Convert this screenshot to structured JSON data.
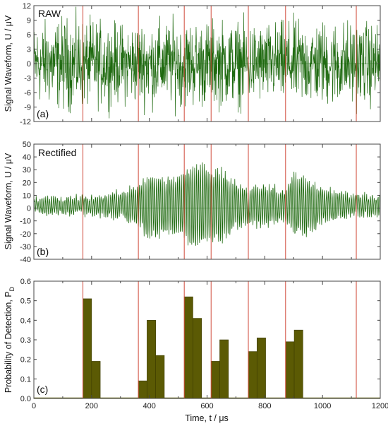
{
  "colors": {
    "waveform": "#1f6a10",
    "bars": "#5b5a04",
    "bar_edge": "#3d3c00",
    "markers": "#d04a3a",
    "frame": "#444444"
  },
  "chart_data": [
    {
      "type": "line",
      "panel_tag": "(a)",
      "annotation": "RAW",
      "ylabel": "Signal Waveform, U / μV",
      "xlim": [
        0,
        1200
      ],
      "ylim": [
        -12,
        12
      ],
      "yticks": [
        12,
        9,
        6,
        3,
        0,
        -3,
        -6,
        -9,
        -12
      ],
      "x_tick_labels_shown": false,
      "envelope": {
        "x": [
          0,
          100,
          200,
          300,
          400,
          500,
          600,
          700,
          800,
          900,
          1000,
          1100,
          1200
        ],
        "amplitude": [
          5.5,
          6.5,
          6,
          5.5,
          6,
          6,
          6,
          6,
          5.5,
          6,
          6,
          6,
          5.5
        ]
      },
      "sample_count": 1200,
      "event_markers_x": [
        170,
        362,
        521,
        614,
        743,
        872,
        1117
      ]
    },
    {
      "type": "line",
      "panel_tag": "(b)",
      "annotation": "Rectified",
      "ylabel": "Signal Waveform, U / μV",
      "xlim": [
        0,
        1200
      ],
      "ylim": [
        -40,
        50
      ],
      "yticks": [
        50,
        40,
        30,
        20,
        10,
        0,
        -10,
        -20,
        -30,
        -40
      ],
      "x_tick_labels_shown": false,
      "envelope": {
        "x": [
          0,
          100,
          170,
          240,
          300,
          362,
          400,
          450,
          500,
          540,
          580,
          614,
          650,
          700,
          743,
          800,
          850,
          872,
          900,
          950,
          1000,
          1050,
          1117,
          1200
        ],
        "amplitude": [
          6,
          7,
          7,
          9,
          11,
          18,
          28,
          24,
          26,
          34,
          35,
          30,
          30,
          20,
          14,
          18,
          14,
          14,
          26,
          24,
          14,
          12,
          9,
          8
        ]
      },
      "sample_count": 1200,
      "event_markers_x": [
        170,
        362,
        521,
        614,
        743,
        872,
        1117
      ]
    },
    {
      "type": "bar",
      "panel_tag": "(c)",
      "ylabel": "Probability of Detection, P",
      "ylabel_subscript": "D",
      "xlabel": "Time, t  / μs",
      "xlim": [
        0,
        1200
      ],
      "ylim": [
        0,
        0.6
      ],
      "xticks": [
        0,
        200,
        400,
        600,
        800,
        1000,
        1200
      ],
      "yticks": [
        0.0,
        0.1,
        0.2,
        0.3,
        0.4,
        0.5,
        0.6
      ],
      "bars": [
        {
          "x0": 170,
          "x1": 200,
          "value": 0.51
        },
        {
          "x0": 200,
          "x1": 230,
          "value": 0.19
        },
        {
          "x0": 362,
          "x1": 392,
          "value": 0.09
        },
        {
          "x0": 392,
          "x1": 422,
          "value": 0.4
        },
        {
          "x0": 422,
          "x1": 452,
          "value": 0.22
        },
        {
          "x0": 521,
          "x1": 551,
          "value": 0.52
        },
        {
          "x0": 551,
          "x1": 581,
          "value": 0.41
        },
        {
          "x0": 614,
          "x1": 644,
          "value": 0.19
        },
        {
          "x0": 644,
          "x1": 674,
          "value": 0.3
        },
        {
          "x0": 743,
          "x1": 773,
          "value": 0.24
        },
        {
          "x0": 773,
          "x1": 803,
          "value": 0.31
        },
        {
          "x0": 872,
          "x1": 902,
          "value": 0.29
        },
        {
          "x0": 902,
          "x1": 932,
          "value": 0.35
        }
      ],
      "event_markers_x": [
        170,
        362,
        521,
        614,
        743,
        872,
        1117
      ]
    }
  ]
}
